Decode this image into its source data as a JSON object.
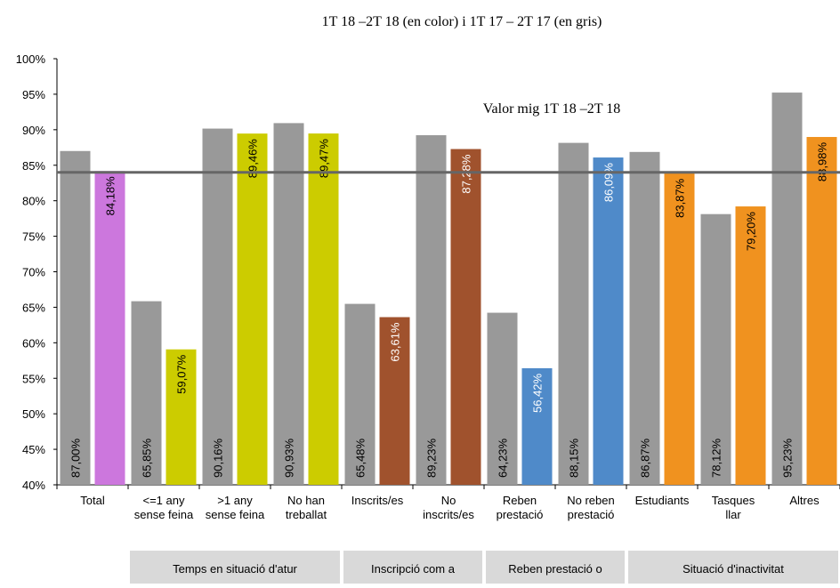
{
  "chart_data": {
    "type": "bar",
    "title": "1T 18 –2T 18 (en color) i 1T 17 – 2T 17 (en gris)",
    "ylim": [
      40,
      100
    ],
    "yticks": [
      "40%",
      "45%",
      "50%",
      "55%",
      "60%",
      "65%",
      "70%",
      "75%",
      "80%",
      "85%",
      "90%",
      "95%",
      "100%"
    ],
    "categories": [
      [
        "Total"
      ],
      [
        "<=1 any",
        "sense feina"
      ],
      [
        ">1 any",
        "sense feina"
      ],
      [
        "No han",
        "treballat"
      ],
      [
        "Inscrits/es"
      ],
      [
        "No",
        "inscrits/es"
      ],
      [
        "Reben",
        "prestació"
      ],
      [
        "No reben",
        "prestació"
      ],
      [
        "Estudiants"
      ],
      [
        "Tasques",
        "llar"
      ],
      [
        "Altres"
      ]
    ],
    "series": [
      {
        "values": [
          87.0,
          65.85,
          90.16,
          90.93,
          65.48,
          89.23,
          64.23,
          88.15,
          86.87,
          78.12,
          95.23
        ],
        "labels": [
          "87,00%",
          "65,85%",
          "90,16%",
          "90,93%",
          "65,48%",
          "89,23%",
          "64,23%",
          "88,15%",
          "86,87%",
          "78,12%",
          "95,23%"
        ],
        "color": "#999999"
      },
      {
        "values": [
          84.18,
          59.07,
          89.46,
          89.47,
          63.61,
          87.28,
          56.42,
          86.09,
          83.87,
          79.2,
          88.98
        ],
        "labels": [
          "84,18%",
          "59,07%",
          "89,46%",
          "89,47%",
          "63,61%",
          "87,28%",
          "56,42%",
          "86,09%",
          "83,87%",
          "79,20%",
          "88,98%"
        ],
        "colors": [
          "#cc77dd",
          "#cccc00",
          "#cccc00",
          "#cccc00",
          "#a0522d",
          "#a0522d",
          "#4f8ac9",
          "#4f8ac9",
          "#f0921f",
          "#f0921f",
          "#f0921f"
        ],
        "label_colors": [
          "#000000",
          "#000000",
          "#000000",
          "#000000",
          "#ffffff",
          "#ffffff",
          "#ffffff",
          "#ffffff",
          "#000000",
          "#000000",
          "#000000"
        ]
      }
    ],
    "reference_line": {
      "label": "Valor mig 1T 18 –2T 18",
      "value": 84.0,
      "color": "#666666"
    },
    "groups": [
      {
        "label": "Temps en situació d'atur",
        "categories": [
          1,
          3
        ]
      },
      {
        "label": "Inscripció com a",
        "categories": [
          4,
          5
        ]
      },
      {
        "label": "Reben prestació o",
        "categories": [
          6,
          7
        ]
      },
      {
        "label": "Situació d'inactivitat",
        "categories": [
          8,
          10
        ]
      }
    ],
    "grid": false,
    "legend": "none"
  }
}
